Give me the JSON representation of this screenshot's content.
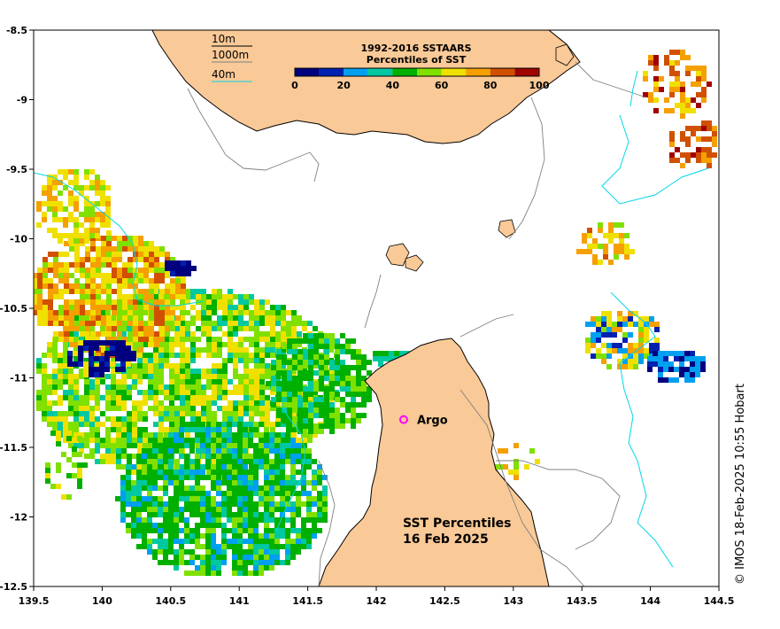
{
  "map": {
    "lon_range": [
      139.5,
      144.5
    ],
    "lat_range": [
      -12.5,
      -8.5
    ],
    "x_ticks": [
      "139.5",
      "140",
      "140.5",
      "141",
      "141.5",
      "142",
      "142.5",
      "143",
      "143.5",
      "144",
      "144.5"
    ],
    "y_ticks": [
      "-8.5",
      "-9",
      "-9.5",
      "-10",
      "-10.5",
      "-11",
      "-11.5",
      "-12",
      "-12.5"
    ],
    "land_color": "#f9c997",
    "marker": {
      "label": "Argo",
      "lon": 142.2,
      "lat": -11.3,
      "color": "#ff00ff"
    }
  },
  "contour_legend": [
    {
      "label": "10m",
      "color": "#000000"
    },
    {
      "label": "1000m",
      "color": "#808080"
    },
    {
      "label": "40m",
      "color": "#00d7e8"
    }
  ],
  "colorbar": {
    "title_line1": "1992-2016 SSTAARS",
    "title_line2": "Percentiles of SST",
    "tick_labels": [
      "0",
      "20",
      "40",
      "60",
      "80",
      "100"
    ],
    "colors": [
      "#00007f",
      "#0020b0",
      "#00a0f0",
      "#00c8a0",
      "#00b000",
      "#80e000",
      "#f0e000",
      "#f5a000",
      "#d05000",
      "#a00000"
    ]
  },
  "title": {
    "line1": "SST Percentiles",
    "line2": "16 Feb 2025"
  },
  "credit": "© IMOS 18-Feb-2025 10:55 Hobart"
}
